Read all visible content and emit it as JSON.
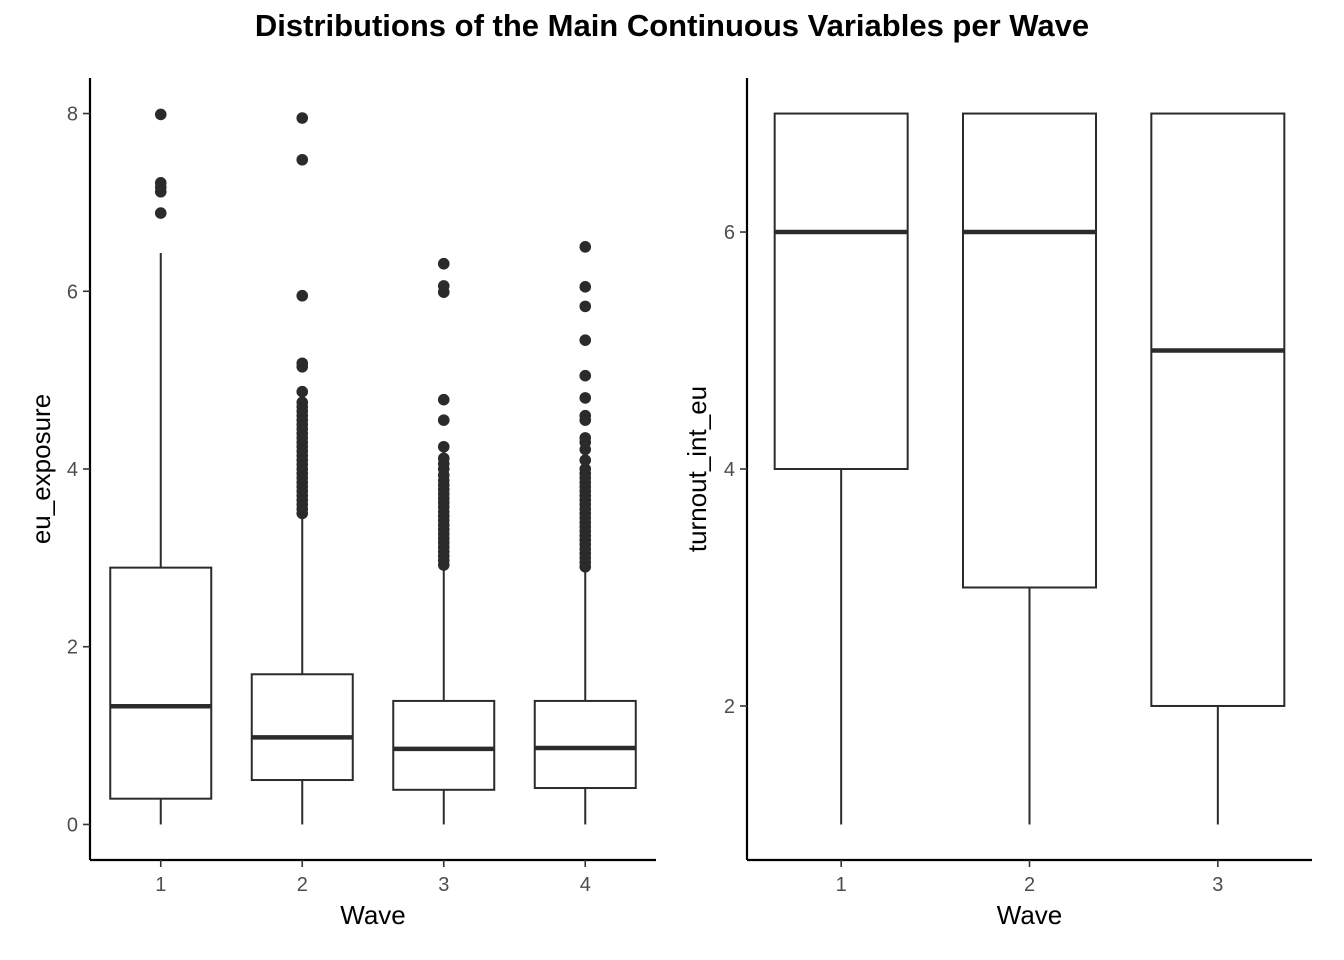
{
  "title": "Distributions of the Main Continuous Variables per Wave",
  "chart_data": [
    {
      "type": "box",
      "xlabel": "Wave",
      "ylabel": "eu_exposure",
      "categories": [
        "1",
        "2",
        "3",
        "4"
      ],
      "yticks": [
        0,
        2,
        4,
        6,
        8
      ],
      "ylim": [
        -0.4,
        8.4
      ],
      "boxes": [
        {
          "category": "1",
          "q1": 0.29,
          "median": 1.33,
          "q3": 2.89,
          "whisker_low": 0.0,
          "whisker_high": 6.43,
          "outliers": [
            6.88,
            7.12,
            7.17,
            7.22,
            7.99
          ]
        },
        {
          "category": "2",
          "q1": 0.5,
          "median": 0.98,
          "q3": 1.69,
          "whisker_low": 0.0,
          "whisker_high": 3.45,
          "outliers": [
            3.5,
            3.55,
            3.6,
            3.65,
            3.7,
            3.75,
            3.8,
            3.85,
            3.9,
            3.95,
            4.0,
            4.05,
            4.1,
            4.15,
            4.2,
            4.25,
            4.3,
            4.35,
            4.4,
            4.45,
            4.5,
            4.55,
            4.6,
            4.65,
            4.7,
            4.75,
            4.87,
            5.15,
            5.19,
            5.95,
            7.48,
            7.95
          ]
        },
        {
          "category": "3",
          "q1": 0.39,
          "median": 0.85,
          "q3": 1.39,
          "whisker_low": 0.0,
          "whisker_high": 2.88,
          "outliers": [
            2.92,
            2.97,
            3.02,
            3.07,
            3.12,
            3.17,
            3.22,
            3.27,
            3.32,
            3.37,
            3.42,
            3.47,
            3.52,
            3.57,
            3.62,
            3.67,
            3.72,
            3.77,
            3.82,
            3.87,
            3.93,
            4.0,
            4.06,
            4.12,
            4.25,
            4.55,
            4.78,
            5.99,
            6.06,
            6.31
          ]
        },
        {
          "category": "4",
          "q1": 0.41,
          "median": 0.86,
          "q3": 1.39,
          "whisker_low": 0.0,
          "whisker_high": 2.86,
          "outliers": [
            2.9,
            2.95,
            3.0,
            3.05,
            3.1,
            3.15,
            3.2,
            3.25,
            3.3,
            3.35,
            3.4,
            3.45,
            3.5,
            3.55,
            3.6,
            3.65,
            3.7,
            3.75,
            3.8,
            3.85,
            3.9,
            3.95,
            4.0,
            4.1,
            4.22,
            4.3,
            4.35,
            4.55,
            4.6,
            4.8,
            5.05,
            5.45,
            5.83,
            6.05,
            6.5
          ]
        }
      ]
    },
    {
      "type": "box",
      "xlabel": "Wave",
      "ylabel": "turnout_int_eu",
      "categories": [
        "1",
        "2",
        "3"
      ],
      "yticks": [
        2,
        4,
        6
      ],
      "ylim": [
        0.7,
        7.3
      ],
      "boxes": [
        {
          "category": "1",
          "q1": 4,
          "median": 6,
          "q3": 7,
          "whisker_low": 1,
          "whisker_high": 7,
          "outliers": []
        },
        {
          "category": "2",
          "q1": 3,
          "median": 6,
          "q3": 7,
          "whisker_low": 1,
          "whisker_high": 7,
          "outliers": []
        },
        {
          "category": "3",
          "q1": 2,
          "median": 5,
          "q3": 7,
          "whisker_low": 1,
          "whisker_high": 7,
          "outliers": []
        }
      ]
    }
  ]
}
